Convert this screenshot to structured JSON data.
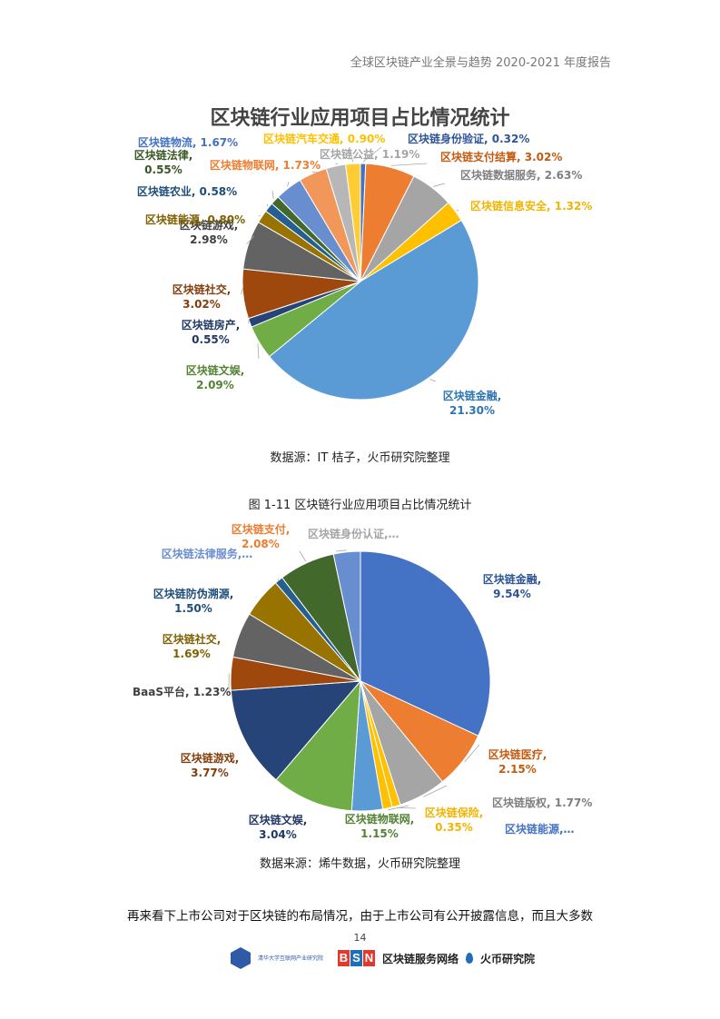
{
  "header": {
    "text": "全球区块链产业全景与趋势 2020-2021 年度报告"
  },
  "chart1": {
    "title": "区块链行业应用项目占比情况统计",
    "source": "数据源：IT 桔子，火币研究院整理"
  },
  "figure_caption": "图 1-11  区块链行业应用项目占比情况统计",
  "chart2": {
    "source": "数据来源：烯牛数据，火币研究院整理"
  },
  "body_text": "再来看下上市公司对于区块链的布局情况，由于上市公司有公开披露信息，而且大多数",
  "page_number": "14",
  "footer": {
    "logo_text": "清华大学互联网产业研究院",
    "bsn_letters": [
      "B",
      "S",
      "N"
    ],
    "bsn_name": "区块链服务网络",
    "huobi_name": "火币研究院"
  },
  "chart_data": [
    {
      "type": "pie",
      "title": "区块链行业应用项目占比情况统计",
      "unit": "%",
      "slices": [
        {
          "name": "区块链身份验证",
          "value": 0.32,
          "color": "#4472c4",
          "label_color": "#2f5597",
          "label": "区块链身份验证, 0.32%"
        },
        {
          "name": "区块链支付结算",
          "value": 3.02,
          "color": "#ed7d31",
          "label_color": "#c55a11",
          "label": "区块链支付结算, 3.02%"
        },
        {
          "name": "区块链数据服务",
          "value": 2.63,
          "color": "#a5a5a5",
          "label_color": "#7f7f7f",
          "label": "区块链数据服务, 2.63%"
        },
        {
          "name": "区块链信息安全",
          "value": 1.32,
          "color": "#ffc000",
          "label_color": "#f2b400",
          "label": "区块链信息安全, 1.32%"
        },
        {
          "name": "区块链金融",
          "value": 21.3,
          "color": "#5b9bd5",
          "label_color": "#2e75b6",
          "label": "区块链金融,\n21.30%"
        },
        {
          "name": "区块链文娱",
          "value": 2.09,
          "color": "#70ad47",
          "label_color": "#548235",
          "label": "区块链文娱,\n2.09%"
        },
        {
          "name": "区块链房产",
          "value": 0.55,
          "color": "#264478",
          "label_color": "#203864",
          "label": "区块链房产,\n0.55%"
        },
        {
          "name": "区块链社交",
          "value": 3.02,
          "color": "#9e480e",
          "label_color": "#843c0c",
          "label": "区块链社交,\n3.02%"
        },
        {
          "name": "区块链游戏",
          "value": 2.98,
          "color": "#636363",
          "label_color": "#404040",
          "label": "区块链游戏,\n2.98%"
        },
        {
          "name": "区块链能源",
          "value": 0.8,
          "color": "#997300",
          "label_color": "#7f6000",
          "label": "区块链能源, 0.80%"
        },
        {
          "name": "区块链农业",
          "value": 0.58,
          "color": "#255e91",
          "label_color": "#1f4e79",
          "label": "区块链农业, 0.58%"
        },
        {
          "name": "区块链法律",
          "value": 0.55,
          "color": "#43682b",
          "label_color": "#385723",
          "label": "区块链法律,\n0.55%"
        },
        {
          "name": "区块链物流",
          "value": 1.67,
          "color": "#698ed0",
          "label_color": "#4472c4",
          "label": "区块链物流, 1.67%"
        },
        {
          "name": "区块链物联网",
          "value": 1.73,
          "color": "#f1975a",
          "label_color": "#ed7d31",
          "label": "区块链物联网, 1.73%"
        },
        {
          "name": "区块链公益",
          "value": 1.19,
          "color": "#b7b7b7",
          "label_color": "#a5a5a5",
          "label": "区块链公益, 1.19%"
        },
        {
          "name": "区块链汽车交通",
          "value": 0.9,
          "color": "#ffcd33",
          "label_color": "#ffc000",
          "label": "区块链汽车交通, 0.90%"
        }
      ]
    },
    {
      "type": "pie",
      "unit": "%",
      "slices": [
        {
          "name": "区块链金融",
          "value": 9.54,
          "color": "#4472c4",
          "label_color": "#2f5597",
          "label": "区块链金融,\n9.54%"
        },
        {
          "name": "区块链医疗",
          "value": 2.15,
          "color": "#ed7d31",
          "label_color": "#c55a11",
          "label": "区块链医疗,\n2.15%"
        },
        {
          "name": "区块链版权",
          "value": 1.77,
          "color": "#a5a5a5",
          "label_color": "#7f7f7f",
          "label": "区块链版权, 1.77%"
        },
        {
          "name": "区块链能源",
          "value": 0.31,
          "color": "#ffc000",
          "label_color": "#4472c4",
          "label": "区块链能源,…"
        },
        {
          "name": "区块链保险",
          "value": 0.35,
          "color": "#ffc000",
          "label_color": "#f2b400",
          "label": "区块链保险,\n0.35%"
        },
        {
          "name": "区块链物联网",
          "value": 1.15,
          "color": "#5b9bd5",
          "label_color": "#548235",
          "label": "区块链物联网,\n1.15%"
        },
        {
          "name": "区块链文娱",
          "value": 3.04,
          "color": "#70ad47",
          "label_color": "#203864",
          "label": "区块链文娱,\n3.04%"
        },
        {
          "name": "区块链游戏",
          "value": 3.77,
          "color": "#264478",
          "label_color": "#843c0c",
          "label": "区块链游戏,\n3.77%"
        },
        {
          "name": "BaaS平台",
          "value": 1.23,
          "color": "#9e480e",
          "label_color": "#404040",
          "label": "BaaS平台, 1.23%"
        },
        {
          "name": "区块链社交",
          "value": 1.69,
          "color": "#636363",
          "label_color": "#7f6000",
          "label": "区块链社交,\n1.69%"
        },
        {
          "name": "区块链防伪溯源",
          "value": 1.5,
          "color": "#997300",
          "label_color": "#1f4e79",
          "label": "区块链防伪溯源,\n1.50%"
        },
        {
          "name": "区块链法律服务",
          "value": 0.31,
          "color": "#255e91",
          "label_color": "#698ed0",
          "label": "区块链法律服务,…"
        },
        {
          "name": "区块链支付",
          "value": 2.08,
          "color": "#43682b",
          "label_color": "#ed7d31",
          "label": "区块链支付,\n2.08%"
        },
        {
          "name": "区块链身份认证",
          "value": 1.0,
          "color": "#698ed0",
          "label_color": "#a5a5a5",
          "label": "区块链身份认证,…"
        }
      ]
    }
  ]
}
